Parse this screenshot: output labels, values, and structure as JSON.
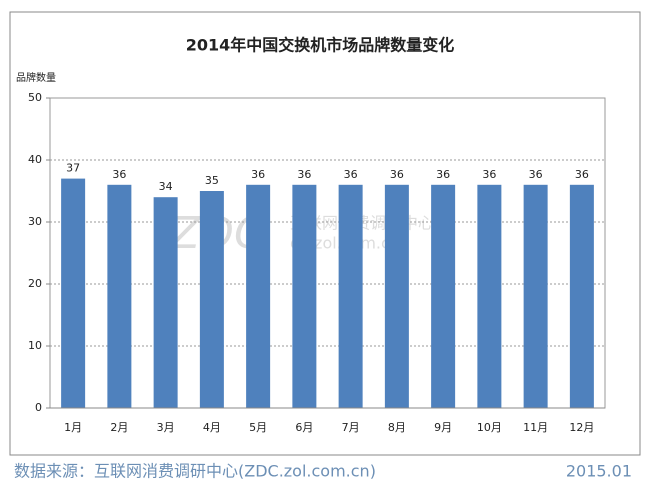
{
  "chart_data": {
    "type": "bar",
    "title": "2014年中国交换机市场品牌数量变化",
    "y_label": "品牌数量",
    "categories": [
      "1月",
      "2月",
      "3月",
      "4月",
      "5月",
      "6月",
      "7月",
      "8月",
      "9月",
      "10月",
      "11月",
      "12月"
    ],
    "values": [
      37,
      36,
      34,
      35,
      36,
      36,
      36,
      36,
      36,
      36,
      36,
      36
    ],
    "color": "#4f81bd",
    "ylim": [
      0,
      50
    ],
    "yticks": [
      0,
      10,
      20,
      30,
      40,
      50
    ],
    "grid": true,
    "watermark": [
      "ZDC",
      "互联网消费调研中心",
      "dc.zol.com.cn"
    ]
  },
  "footer": {
    "source": "数据来源：互联网消费调研中心(ZDC.zol.com.cn)",
    "date": "2015.01"
  }
}
